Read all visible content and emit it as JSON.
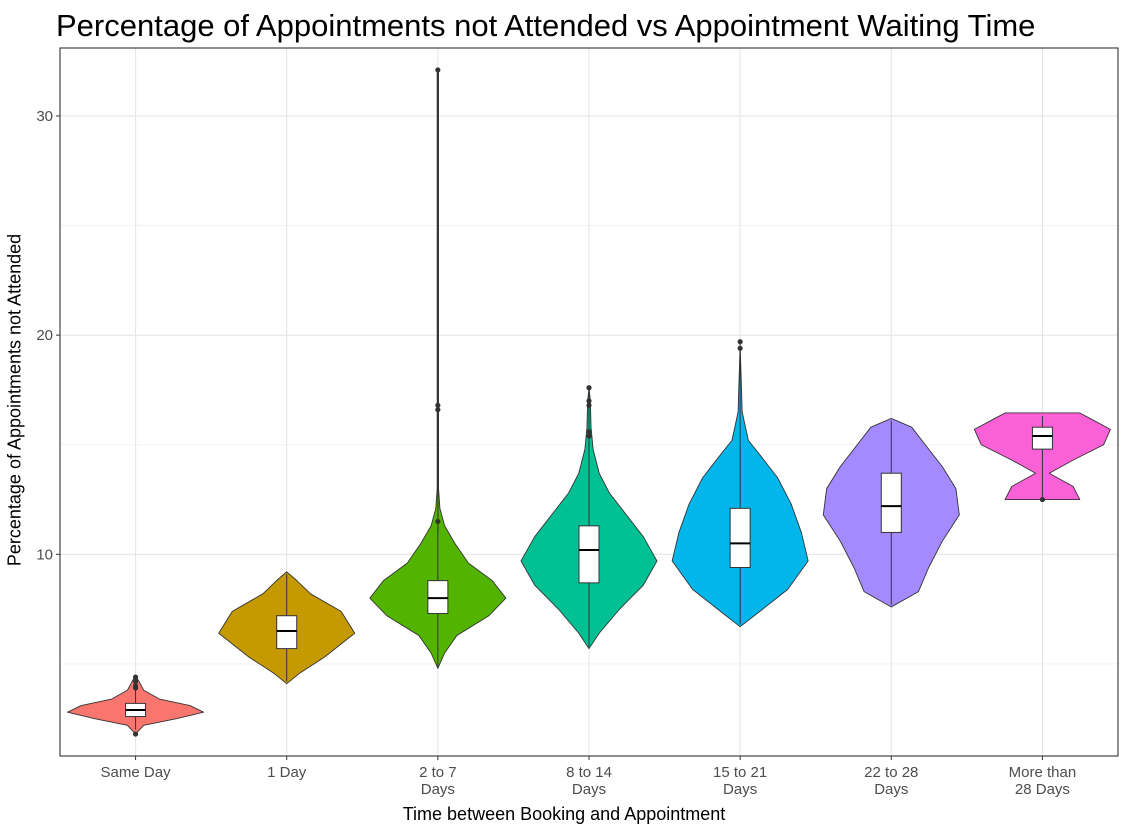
{
  "chart_data": {
    "type": "violin",
    "title": "Percentage of Appointments not Attended vs Appointment Waiting Time",
    "xlabel": "Time between Booking and Appointment",
    "ylabel": "Percentage of Appointments not Attended",
    "ylim": [
      0.8,
      33.1
    ],
    "yticks": [
      10,
      20,
      30
    ],
    "grid": true,
    "legend": "none",
    "categories": [
      {
        "label": [
          "Same Day"
        ],
        "color": "#F8766D",
        "q1": 2.6,
        "median": 2.9,
        "q3": 3.2,
        "wlo": 2.0,
        "whi": 3.7,
        "outliers": [
          1.8,
          3.9,
          4.0,
          4.2,
          4.4
        ],
        "violin": [
          [
            1.8,
            0.0
          ],
          [
            2.2,
            0.12
          ],
          [
            2.5,
            0.6
          ],
          [
            2.8,
            1.0
          ],
          [
            3.1,
            0.8
          ],
          [
            3.4,
            0.35
          ],
          [
            3.8,
            0.12
          ],
          [
            4.2,
            0.05
          ],
          [
            4.5,
            0.0
          ]
        ]
      },
      {
        "label": [
          "1 Day"
        ],
        "color": "#C49A00",
        "q1": 5.7,
        "median": 6.5,
        "q3": 7.2,
        "wlo": 4.2,
        "whi": 9.1,
        "outliers": [],
        "violin": [
          [
            4.1,
            0.0
          ],
          [
            4.6,
            0.2
          ],
          [
            5.3,
            0.55
          ],
          [
            6.4,
            1.0
          ],
          [
            7.4,
            0.8
          ],
          [
            8.2,
            0.35
          ],
          [
            8.8,
            0.15
          ],
          [
            9.2,
            0.0
          ]
        ]
      },
      {
        "label": [
          "2 to 7",
          "Days"
        ],
        "color": "#53B400",
        "q1": 7.3,
        "median": 8.0,
        "q3": 8.8,
        "wlo": 4.8,
        "whi": 11.0,
        "outliers": [
          11.5,
          16.6,
          16.8,
          32.1
        ],
        "violin": [
          [
            4.8,
            0.0
          ],
          [
            5.5,
            0.1
          ],
          [
            6.3,
            0.28
          ],
          [
            7.2,
            0.75
          ],
          [
            8.0,
            1.0
          ],
          [
            8.8,
            0.8
          ],
          [
            9.6,
            0.45
          ],
          [
            10.5,
            0.25
          ],
          [
            11.3,
            0.1
          ],
          [
            12.1,
            0.03
          ],
          [
            13.0,
            0.01
          ],
          [
            16.6,
            0.01
          ],
          [
            32.1,
            0.01
          ]
        ]
      },
      {
        "label": [
          "8 to 14",
          "Days"
        ],
        "color": "#00C094",
        "q1": 8.7,
        "median": 10.2,
        "q3": 11.3,
        "wlo": 5.8,
        "whi": 14.9,
        "outliers": [
          15.4,
          15.6,
          16.8,
          17.0,
          17.6
        ],
        "violin": [
          [
            5.7,
            0.0
          ],
          [
            6.4,
            0.15
          ],
          [
            7.5,
            0.45
          ],
          [
            8.6,
            0.8
          ],
          [
            9.7,
            1.0
          ],
          [
            10.8,
            0.8
          ],
          [
            11.8,
            0.55
          ],
          [
            12.8,
            0.3
          ],
          [
            13.7,
            0.15
          ],
          [
            14.8,
            0.06
          ],
          [
            15.8,
            0.03
          ],
          [
            17.0,
            0.02
          ],
          [
            17.6,
            0.0
          ]
        ]
      },
      {
        "label": [
          "15 to 21",
          "Days"
        ],
        "color": "#00B6EB",
        "q1": 9.4,
        "median": 10.5,
        "q3": 12.1,
        "wlo": 6.8,
        "whi": 15.0,
        "outliers": [
          19.4,
          19.7
        ],
        "violin": [
          [
            6.7,
            0.0
          ],
          [
            7.3,
            0.25
          ],
          [
            8.4,
            0.7
          ],
          [
            9.7,
            1.0
          ],
          [
            11.0,
            0.9
          ],
          [
            12.3,
            0.75
          ],
          [
            13.5,
            0.55
          ],
          [
            14.5,
            0.3
          ],
          [
            15.2,
            0.12
          ],
          [
            16.5,
            0.03
          ],
          [
            19.6,
            0.0
          ]
        ]
      },
      {
        "label": [
          "22 to 28",
          "Days"
        ],
        "color": "#A58AFF",
        "q1": 11.0,
        "median": 12.2,
        "q3": 13.7,
        "wlo": 7.7,
        "whi": 16.1,
        "outliers": [],
        "violin": [
          [
            7.6,
            0.0
          ],
          [
            8.3,
            0.4
          ],
          [
            9.4,
            0.55
          ],
          [
            10.6,
            0.75
          ],
          [
            11.8,
            1.0
          ],
          [
            13.0,
            0.95
          ],
          [
            14.0,
            0.75
          ],
          [
            15.0,
            0.5
          ],
          [
            15.8,
            0.3
          ],
          [
            16.2,
            0.0
          ]
        ]
      },
      {
        "label": [
          "More than",
          "28 Days"
        ],
        "color": "#FB61D7",
        "q1": 14.8,
        "median": 15.4,
        "q3": 15.8,
        "wlo": 12.6,
        "whi": 16.3,
        "outliers": [
          12.5
        ],
        "violin": [
          [
            12.5,
            0.55
          ],
          [
            13.1,
            0.45
          ],
          [
            13.7,
            0.1
          ],
          [
            14.3,
            0.45
          ],
          [
            15.0,
            0.9
          ],
          [
            15.7,
            1.0
          ],
          [
            16.2,
            0.7
          ],
          [
            16.45,
            0.55
          ]
        ]
      }
    ]
  }
}
